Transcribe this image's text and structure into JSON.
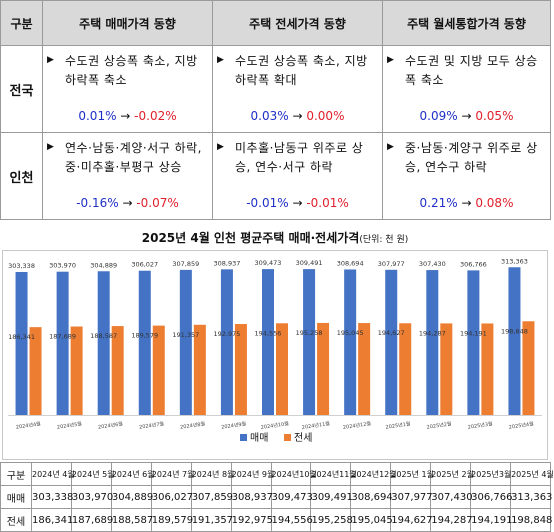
{
  "summary": {
    "header": {
      "gubun": "구분",
      "col1": "주택 매매가격 동향",
      "col2": "주택 전세가격 동향",
      "col3": "주택 월세통합가격 동향"
    },
    "rows": [
      {
        "label": "전국",
        "cells": [
          {
            "text": "수도권 상승폭 축소, 지방 하락폭 축소",
            "from": "0.01%",
            "to": "-0.02%"
          },
          {
            "text": "수도권 상승폭 축소, 지방 하락폭 확대",
            "from": "0.03%",
            "to": "0.00%"
          },
          {
            "text": "수도권 및 지방 모두 상승폭 축소",
            "from": "0.09%",
            "to": "0.05%"
          }
        ]
      },
      {
        "label": "인천",
        "cells": [
          {
            "text": "연수·남동·계양·서구 하락, 중·미추홀·부평구 상승",
            "from": "-0.16%",
            "to": "-0.07%"
          },
          {
            "text": "미추홀·남동구 위주로 상승, 연수·서구 하락",
            "from": "-0.01%",
            "to": "-0.01%"
          },
          {
            "text": "중·남동·계양구 위주로 상승, 연수구 하락",
            "from": "0.21%",
            "to": "0.08%"
          }
        ]
      }
    ]
  },
  "chart_data": {
    "type": "bar",
    "title": "2025년 4월 인천 평균주택 매매·전세가격",
    "unit_note": "(단위: 천 원)",
    "categories": [
      "2024년4월",
      "2024년5월",
      "2024년6월",
      "2024년7월",
      "2024년8월",
      "2024년9월",
      "2024년10월",
      "2024년11월",
      "2024년12월",
      "2025년1월",
      "2025년2월",
      "2025년3월",
      "2025년4월"
    ],
    "series": [
      {
        "name": "매매",
        "color": "#4472c4",
        "values": [
          303338,
          303970,
          304889,
          306027,
          307859,
          308937,
          309473,
          309491,
          308694,
          307977,
          307430,
          306766,
          313363
        ]
      },
      {
        "name": "전세",
        "color": "#ed7d31",
        "values": [
          186341,
          187689,
          188587,
          189579,
          191357,
          192975,
          194556,
          195258,
          195045,
          194627,
          194287,
          194191,
          198848
        ]
      }
    ],
    "data_labels": [
      "303,338",
      "303,970",
      "304,889",
      "306,027",
      "307,859",
      "308,937",
      "309,473",
      "309,491",
      "308,694",
      "307,977",
      "307,430",
      "306,766",
      "313,363"
    ],
    "data_labels_2": [
      "186,341",
      "187,689",
      "188,587",
      "189,579",
      "191,357",
      "192,975",
      "194,556",
      "195,258",
      "195,045",
      "194,627",
      "194,287",
      "194,191",
      "198,848"
    ],
    "ylim": [
      0,
      350000
    ],
    "legend": "bottom"
  },
  "datatable": {
    "header_label": "구분",
    "months": [
      "2024년 4월",
      "2024년 5월",
      "2024년 6월",
      "2024년 7월",
      "2024년 8월",
      "2024년 9월",
      "2024년10월",
      "2024년11월",
      "2024년12월",
      "2025년 1월",
      "2025년 2월",
      "2025년3월",
      "2025년 4월"
    ],
    "rows": [
      {
        "label": "매매",
        "values": [
          "303,338",
          "303,970",
          "304,889",
          "306,027",
          "307,859",
          "308,937",
          "309,473",
          "309,491",
          "308,694",
          "307,977",
          "307,430",
          "306,766",
          "313,363"
        ]
      },
      {
        "label": "전세",
        "values": [
          "186,341",
          "187,689",
          "188,587",
          "189,579",
          "191,357",
          "192,975",
          "194,556",
          "195,258",
          "195,045",
          "194,627",
          "194,287",
          "194,191",
          "198,848"
        ]
      }
    ]
  }
}
